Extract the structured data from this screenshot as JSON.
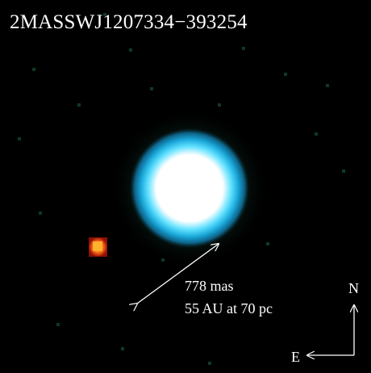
{
  "image": {
    "title": "2MASSWJ1207334−393254",
    "separation_mas": "778 mas",
    "separation_physical": "55 AU at 70 pc",
    "compass": {
      "north_label": "N",
      "east_label": "E"
    },
    "colors": {
      "background": "#000000",
      "primary_core": "#ffffff",
      "primary_halo": "#19c8f0",
      "primary_outer_glow": "#1e6f5a",
      "companion_core": "#ffb02e",
      "companion_edge": "#c81e0a",
      "annotation": "#ffffff"
    }
  }
}
